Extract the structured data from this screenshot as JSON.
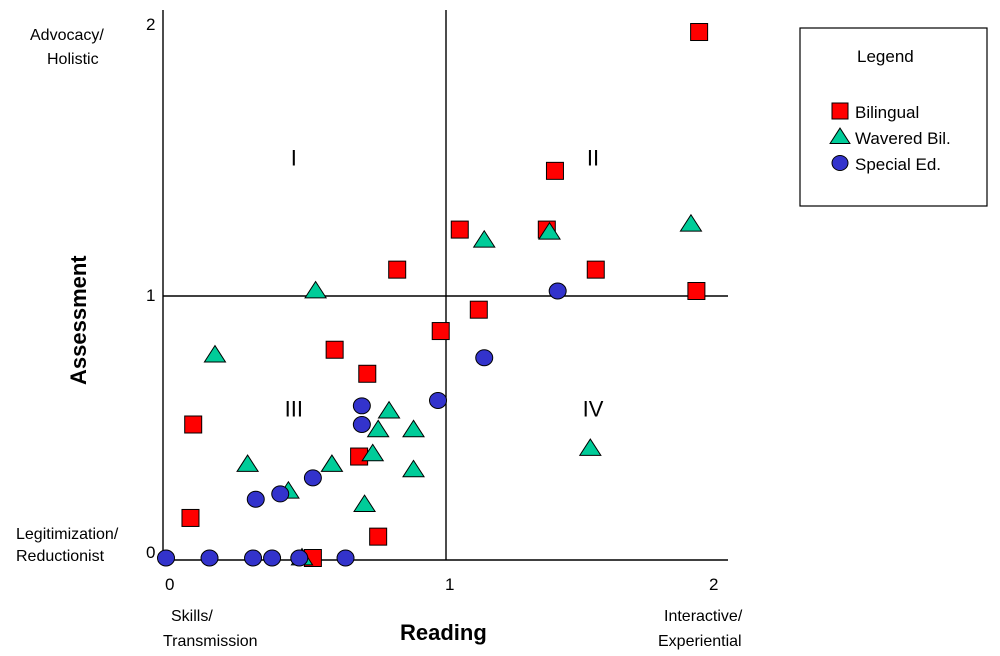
{
  "chart_data": {
    "type": "scatter",
    "title": "",
    "xlabel": "Reading",
    "ylabel": "Assessment",
    "xlim": [
      0,
      2
    ],
    "ylim": [
      0,
      2
    ],
    "x_ticks": [
      "0",
      "1",
      "2"
    ],
    "y_ticks": [
      "0",
      "1",
      "2"
    ],
    "x_end_labels": {
      "low": [
        "Skills/",
        "Transmission"
      ],
      "high": [
        "Interactive/",
        "Experiential"
      ]
    },
    "y_end_labels": {
      "low": [
        "Legitimization/",
        "Reductionist"
      ],
      "high": [
        "Advocacy/",
        "Holistic"
      ]
    },
    "quadrants": [
      {
        "label": "I",
        "x": 0.47,
        "y": 1.5
      },
      {
        "label": "II",
        "x": 1.57,
        "y": 1.5
      },
      {
        "label": "III",
        "x": 0.47,
        "y": 0.56
      },
      {
        "label": "IV",
        "x": 1.57,
        "y": 0.56
      }
    ],
    "divider_lines": {
      "x": 1,
      "y": 1
    },
    "legend": {
      "title": "Legend",
      "position": "right"
    },
    "series": [
      {
        "name": "Bilingual",
        "marker": "square",
        "color": "#ff0000",
        "points": [
          [
            1.96,
            1.97
          ],
          [
            1.43,
            1.45
          ],
          [
            1.08,
            1.23
          ],
          [
            1.4,
            1.23
          ],
          [
            1.58,
            1.08
          ],
          [
            0.85,
            1.08
          ],
          [
            1.95,
            1.0
          ],
          [
            1.15,
            0.93
          ],
          [
            1.01,
            0.85
          ],
          [
            0.62,
            0.78
          ],
          [
            0.74,
            0.69
          ],
          [
            0.1,
            0.5
          ],
          [
            0.71,
            0.38
          ],
          [
            0.09,
            0.15
          ],
          [
            0.78,
            0.08
          ],
          [
            0.54,
            0.0
          ]
        ]
      },
      {
        "name": "Wavered Bil.",
        "marker": "triangle",
        "color": "#00cc99",
        "points": [
          [
            1.93,
            1.25
          ],
          [
            1.17,
            1.19
          ],
          [
            1.41,
            1.22
          ],
          [
            0.55,
            1.0
          ],
          [
            0.18,
            0.76
          ],
          [
            0.82,
            0.55
          ],
          [
            0.78,
            0.48
          ],
          [
            0.91,
            0.48
          ],
          [
            0.76,
            0.39
          ],
          [
            1.56,
            0.41
          ],
          [
            0.61,
            0.35
          ],
          [
            0.3,
            0.35
          ],
          [
            0.91,
            0.33
          ],
          [
            0.45,
            0.25
          ],
          [
            0.73,
            0.2
          ],
          [
            0.5,
            0.0
          ]
        ]
      },
      {
        "name": "Special Ed.",
        "marker": "circle",
        "color": "#3333cc",
        "points": [
          [
            1.44,
            1.0
          ],
          [
            1.17,
            0.75
          ],
          [
            1.0,
            0.59
          ],
          [
            0.72,
            0.57
          ],
          [
            0.72,
            0.5
          ],
          [
            0.54,
            0.3
          ],
          [
            0.42,
            0.24
          ],
          [
            0.33,
            0.22
          ],
          [
            0.0,
            0.0
          ],
          [
            0.16,
            0.0
          ],
          [
            0.32,
            0.0
          ],
          [
            0.39,
            0.0
          ],
          [
            0.49,
            0.0
          ],
          [
            0.66,
            0.0
          ]
        ]
      }
    ]
  }
}
